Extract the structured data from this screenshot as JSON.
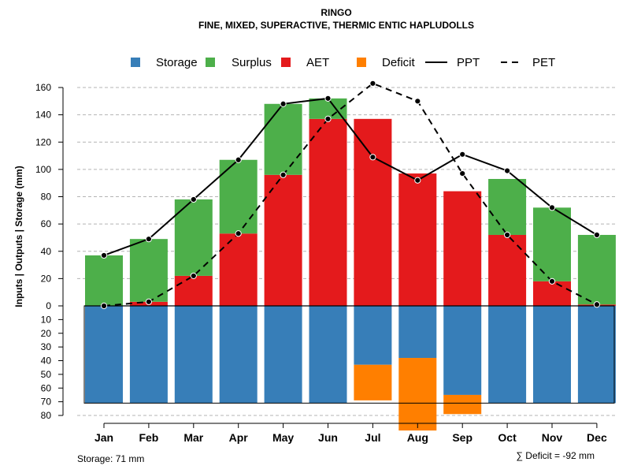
{
  "chart_data": {
    "type": "bar",
    "title": "RINGO",
    "subtitle": "FINE, MIXED, SUPERACTIVE, THERMIC ENTIC HAPLUDOLLS",
    "ylabel": "Inputs | Outputs | Storage    (mm)",
    "categories": [
      "Jan",
      "Feb",
      "Mar",
      "Apr",
      "May",
      "Jun",
      "Jul",
      "Aug",
      "Sep",
      "Oct",
      "Nov",
      "Dec"
    ],
    "upper_ticks": [
      "0",
      "20",
      "40",
      "60",
      "80",
      "100",
      "120",
      "140",
      "160"
    ],
    "lower_ticks": [
      "10",
      "20",
      "30",
      "40",
      "50",
      "60",
      "70",
      "80"
    ],
    "ylim_upper": [
      0,
      170
    ],
    "ylim_lower": [
      0,
      80
    ],
    "series": [
      {
        "name": "Storage",
        "color": "#377EB8",
        "values": [
          71,
          71,
          71,
          71,
          71,
          71,
          43,
          38,
          65,
          71,
          71,
          71
        ]
      },
      {
        "name": "Surplus",
        "color": "#4DAF4A",
        "values": [
          37,
          46,
          56,
          54,
          52,
          15,
          0,
          0,
          0,
          41,
          54,
          51
        ]
      },
      {
        "name": "AET",
        "color": "#E41A1C",
        "values": [
          0,
          3,
          22,
          53,
          96,
          137,
          137,
          97,
          84,
          52,
          18,
          1
        ]
      },
      {
        "name": "Deficit",
        "color": "#FF7F00",
        "values": [
          0,
          0,
          0,
          0,
          0,
          0,
          26,
          53,
          14,
          0,
          0,
          0
        ]
      },
      {
        "name": "PPT",
        "color": "#000000",
        "style": "solid",
        "values": [
          37,
          49,
          78,
          107,
          148,
          152,
          109,
          92,
          111,
          99,
          72,
          52
        ]
      },
      {
        "name": "PET",
        "color": "#000000",
        "style": "dashed",
        "values": [
          0,
          3,
          22,
          53,
          96,
          137,
          163,
          150,
          97,
          52,
          18,
          1
        ]
      }
    ],
    "storage_note": "Storage: 71 mm",
    "deficit_note": "∑ Deficit = -92 mm"
  }
}
